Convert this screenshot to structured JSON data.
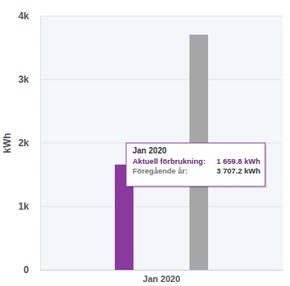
{
  "chart_data": {
    "type": "bar",
    "y_label": "kWh",
    "categories": [
      "Jan 2020"
    ],
    "series": [
      {
        "name": "Aktuell förbrukning",
        "color": "#8a3a9e",
        "values": [
          1659.8
        ],
        "value_labels": [
          "1 659.8 kWh"
        ]
      },
      {
        "name": "Föregående år",
        "color": "#a6a6a6",
        "values": [
          3707.2
        ],
        "value_labels": [
          "3 707.2 kWh"
        ]
      }
    ],
    "tooltip": {
      "separator": ":"
    },
    "ylim": [
      0,
      4000
    ],
    "yticks": [
      0,
      {
        "value": 1000,
        "label": "1k"
      },
      {
        "value": 2000,
        "label": "2k"
      },
      {
        "value": 3000,
        "label": "3k"
      },
      {
        "value": 4000,
        "label": "4k"
      }
    ],
    "grid": true
  }
}
